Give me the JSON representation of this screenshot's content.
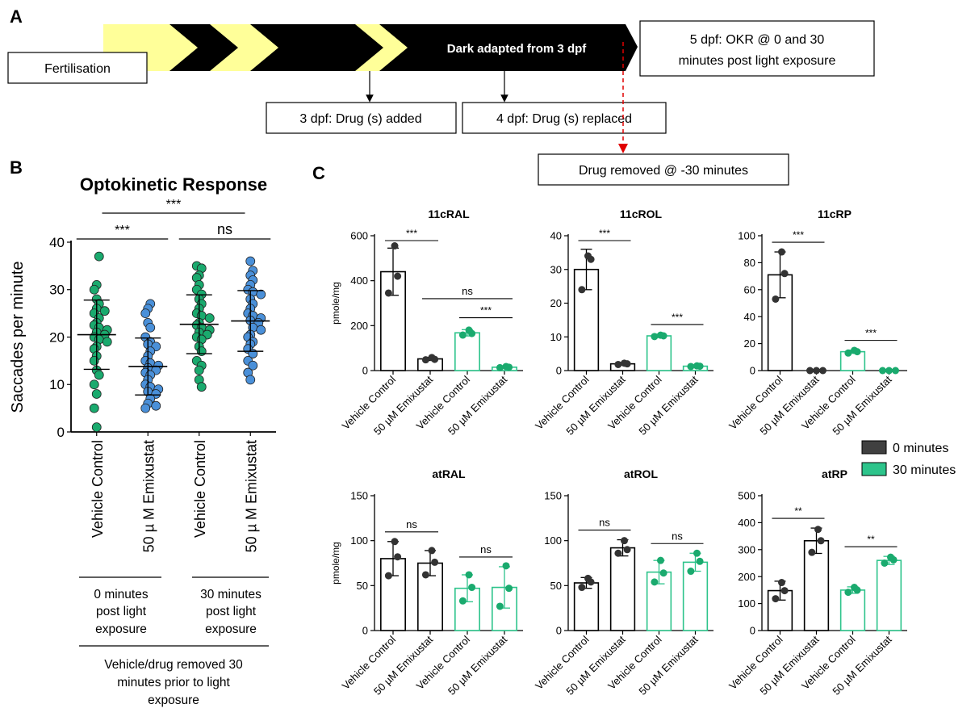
{
  "panel_labels": {
    "a": "A",
    "b": "B",
    "c": "C"
  },
  "timeline": {
    "fertilisation": "Fertilisation",
    "dark_adapted": "Dark adapted from 3 dpf",
    "okr_line1": "5 dpf: OKR @ 0 and 30",
    "okr_line2": "minutes post light exposure",
    "drug_added": "3 dpf: Drug (s) added",
    "drug_replaced": "4 dpf: Drug (s) replaced",
    "drug_removed": "Drug removed  @ -30 minutes"
  },
  "panel_b": {
    "group_labels": [
      [
        "0 minutes",
        "post light",
        "exposure"
      ],
      [
        "30 minutes",
        "post light",
        "exposure"
      ]
    ],
    "bottom_note": [
      "Vehicle/drug removed 30",
      "minutes prior to light",
      "exposure"
    ]
  },
  "legend": {
    "items": [
      {
        "label": "0 minutes",
        "color": "#404040"
      },
      {
        "label": "30 minutes",
        "color": "#2dc48b"
      }
    ]
  },
  "colors": {
    "black_series": "#000000",
    "green_series": "#2dc48b",
    "green_dots": "#1aaa6e",
    "blue_dots": "#4a90d9",
    "red_arrow": "#e00000",
    "arrow_fill": "#ffff99"
  },
  "chart_data": [
    {
      "id": "okr",
      "type": "scatter",
      "title": "Optokinetic Response",
      "ylabel": "Saccades per minute",
      "categories": [
        "Vehicle Control",
        "50 µ M Emixustat",
        "Vehicle Control",
        "50 µ M Emixustat"
      ],
      "ylim": [
        0,
        40
      ],
      "yticks": [
        0,
        10,
        20,
        30,
        40
      ],
      "means": [
        20.5,
        13.8,
        22.7,
        23.4
      ],
      "sd": [
        7.3,
        6.0,
        6.2,
        6.4
      ],
      "points": [
        [
          37,
          31,
          30,
          28,
          27,
          26,
          25.5,
          25,
          24,
          23,
          22.5,
          22,
          21.5,
          21,
          20.5,
          20,
          19.5,
          19,
          18,
          17.5,
          16,
          15,
          13,
          12,
          10,
          8,
          5,
          1
        ],
        [
          27,
          26,
          25,
          23,
          22,
          20,
          19,
          18.5,
          18,
          17,
          16,
          15,
          14.5,
          14,
          13.5,
          13,
          12.5,
          12,
          11,
          10,
          9.5,
          9,
          8.5,
          8,
          7,
          6,
          5.5,
          5
        ],
        [
          35,
          34.5,
          33,
          32.5,
          31,
          30,
          29,
          28,
          27,
          26,
          25,
          24.5,
          24,
          23,
          22.5,
          22,
          21.5,
          21,
          20.5,
          20,
          19.5,
          18,
          17,
          15,
          14,
          13,
          11,
          9.5
        ],
        [
          36,
          34,
          33,
          32,
          31,
          30,
          29.5,
          29,
          28,
          27,
          26,
          25,
          24.5,
          24,
          23.5,
          23,
          22,
          21.5,
          20.5,
          20,
          19,
          18.5,
          17.5,
          16.5,
          15,
          14,
          12.5,
          11
        ]
      ],
      "point_colors": [
        "#1aaa6e",
        "#4a90d9",
        "#1aaa6e",
        "#4a90d9"
      ],
      "significance": [
        {
          "from": 0,
          "to": 1,
          "label": "***"
        },
        {
          "from": 2,
          "to": 3,
          "label": "ns"
        },
        {
          "from": 0.5,
          "to": 2.5,
          "label": "***"
        }
      ]
    },
    {
      "id": "11cRAL",
      "type": "bar",
      "title": "11cRAL",
      "ylabel": "pmole/mg",
      "categories": [
        "Vehicle Control",
        "50 µM Emixustat",
        "Vehicle Control",
        "50 µM Emixustat"
      ],
      "series_group": [
        "0 minutes",
        "0 minutes",
        "30 minutes",
        "30 minutes"
      ],
      "values": [
        440,
        52,
        168,
        15
      ],
      "errors": [
        105,
        7,
        14,
        3
      ],
      "points": [
        [
          555,
          420,
          345
        ],
        [
          58,
          50,
          48
        ],
        [
          180,
          165,
          158
        ],
        [
          18,
          15,
          13
        ]
      ],
      "ylim": [
        0,
        600
      ],
      "yticks": [
        0,
        200,
        400,
        600
      ],
      "significance": [
        {
          "from": 0,
          "to": 1,
          "label": "***"
        },
        {
          "from": 1,
          "to": 3,
          "label": "ns"
        },
        {
          "from": 2,
          "to": 3,
          "label": "***"
        }
      ]
    },
    {
      "id": "11cROL",
      "type": "bar",
      "title": "11cROL",
      "ylabel": "",
      "categories": [
        "Vehicle Control",
        "50 µM Emixustat",
        "Vehicle Control",
        "50 µM Emixustat"
      ],
      "series_group": [
        "0 minutes",
        "0 minutes",
        "30 minutes",
        "30 minutes"
      ],
      "values": [
        30,
        2,
        10.3,
        1.3
      ],
      "errors": [
        6,
        0.4,
        0.5,
        0.3
      ],
      "points": [
        [
          34,
          33,
          24
        ],
        [
          2.2,
          2.0,
          1.8
        ],
        [
          10.5,
          10.3,
          10.1
        ],
        [
          1.4,
          1.3,
          1.2
        ]
      ],
      "ylim": [
        0,
        40
      ],
      "yticks": [
        0,
        10,
        20,
        30,
        40
      ],
      "significance": [
        {
          "from": 0,
          "to": 1,
          "label": "***"
        },
        {
          "from": 2,
          "to": 3,
          "label": "***"
        }
      ]
    },
    {
      "id": "11cRP",
      "type": "bar",
      "title": "11cRP",
      "ylabel": "",
      "categories": [
        "Vehicle Control",
        "50 µM Emixustat",
        "Vehicle Control",
        "50 µM Emixustat"
      ],
      "series_group": [
        "0 minutes",
        "0 minutes",
        "30 minutes",
        "30 minutes"
      ],
      "values": [
        71,
        0,
        14,
        0
      ],
      "errors": [
        17,
        0,
        1.2,
        0
      ],
      "points": [
        [
          88,
          72,
          53
        ],
        [
          0,
          0,
          0
        ],
        [
          15,
          14,
          13
        ],
        [
          0,
          0,
          0
        ]
      ],
      "ylim": [
        0,
        100
      ],
      "yticks": [
        0,
        20,
        40,
        60,
        80,
        100
      ],
      "significance": [
        {
          "from": 0,
          "to": 1,
          "label": "***"
        },
        {
          "from": 2,
          "to": 3,
          "label": "***"
        }
      ]
    },
    {
      "id": "atRAL",
      "type": "bar",
      "title": "atRAL",
      "ylabel": "pmole/mg",
      "categories": [
        "Vehicle Control",
        "50 µM Emixustat",
        "Vehicle Control",
        "50 µM Emixustat"
      ],
      "series_group": [
        "0 minutes",
        "0 minutes",
        "30 minutes",
        "30 minutes"
      ],
      "values": [
        80,
        75,
        47,
        48
      ],
      "errors": [
        19,
        14,
        15,
        23
      ],
      "points": [
        [
          99,
          82,
          61
        ],
        [
          89,
          76,
          62
        ],
        [
          62,
          48,
          33
        ],
        [
          72,
          47,
          27
        ]
      ],
      "ylim": [
        0,
        150
      ],
      "yticks": [
        0,
        50,
        100,
        150
      ],
      "significance": [
        {
          "from": 0,
          "to": 1,
          "label": "ns"
        },
        {
          "from": 2,
          "to": 3,
          "label": "ns"
        }
      ]
    },
    {
      "id": "atROL",
      "type": "bar",
      "title": "atROL",
      "ylabel": "",
      "categories": [
        "Vehicle Control",
        "50 µM Emixustat",
        "Vehicle Control",
        "50 µM Emixustat"
      ],
      "series_group": [
        "0 minutes",
        "0 minutes",
        "30 minutes",
        "30 minutes"
      ],
      "values": [
        53,
        92,
        65,
        76
      ],
      "errors": [
        6,
        9,
        13,
        10
      ],
      "points": [
        [
          58,
          54,
          48
        ],
        [
          100,
          90,
          86
        ],
        [
          78,
          64,
          54
        ],
        [
          86,
          77,
          66
        ]
      ],
      "ylim": [
        0,
        150
      ],
      "yticks": [
        0,
        50,
        100,
        150
      ],
      "significance": [
        {
          "from": 0,
          "to": 1,
          "label": "ns"
        },
        {
          "from": 2,
          "to": 3,
          "label": "ns"
        }
      ]
    },
    {
      "id": "atRP",
      "type": "bar",
      "title": "atRP",
      "ylabel": "",
      "categories": [
        "Vehicle Control",
        "50 µM Emixustat",
        "Vehicle Control",
        "50 µM Emixustat"
      ],
      "series_group": [
        "0 minutes",
        "0 minutes",
        "30 minutes",
        "30 minutes"
      ],
      "values": [
        148,
        333,
        150,
        260
      ],
      "errors": [
        35,
        47,
        12,
        15
      ],
      "points": [
        [
          178,
          148,
          118
        ],
        [
          375,
          333,
          290
        ],
        [
          160,
          150,
          142
        ],
        [
          272,
          262,
          250
        ]
      ],
      "ylim": [
        0,
        500
      ],
      "yticks": [
        0,
        100,
        200,
        300,
        400,
        500
      ],
      "significance": [
        {
          "from": 0,
          "to": 1,
          "label": "**"
        },
        {
          "from": 2,
          "to": 3,
          "label": "**"
        }
      ]
    }
  ]
}
